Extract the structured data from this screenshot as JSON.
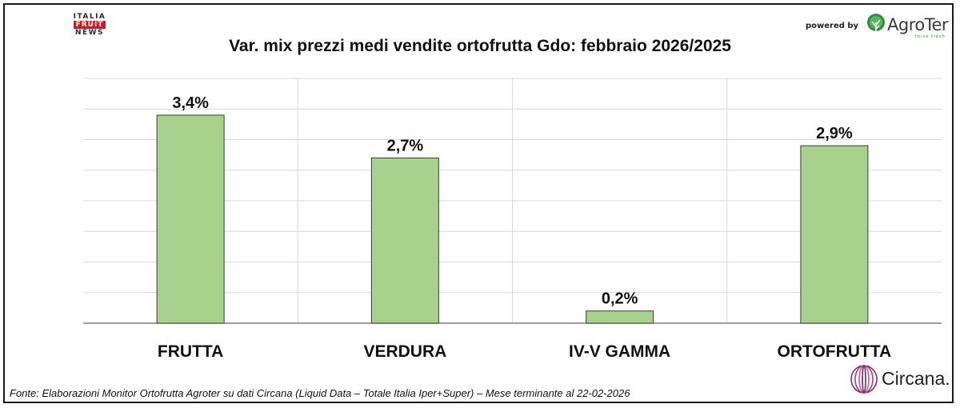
{
  "logos": {
    "italia_fruit_news": {
      "line1": "ITALIA",
      "line2": "FRUIT",
      "line3": "NEWS"
    },
    "powered_by": "powered by",
    "agroter": {
      "brand": "AgroTer",
      "tagline": "think fresh",
      "color": "#2f8f3a"
    },
    "circana": {
      "brand": "Circana.",
      "color": "#7a2e7a"
    }
  },
  "source_note": "Fonte: Elaborazioni Monitor Ortofrutta Agroter su dati Circana (Liquid Data – Totale Italia Iper+Super) – Mese terminante al 22-02-2026",
  "chart_data": {
    "type": "bar",
    "title": "Var. mix prezzi medi vendite ortofrutta Gdo: febbraio 2026/2025",
    "categories": [
      "FRUTTA",
      "VERDURA",
      "IV-V GAMMA",
      "ORTOFRUTTA"
    ],
    "values": [
      3.4,
      2.7,
      0.2,
      2.9
    ],
    "value_labels": [
      "3,4%",
      "2,7%",
      "0,2%",
      "2,9%"
    ],
    "ylim": [
      0,
      4.0
    ],
    "grid": true,
    "legend": "none",
    "bar_color": "#a9d18e",
    "bar_border_color": "#3b3b3b",
    "xlabel": "",
    "ylabel": ""
  }
}
